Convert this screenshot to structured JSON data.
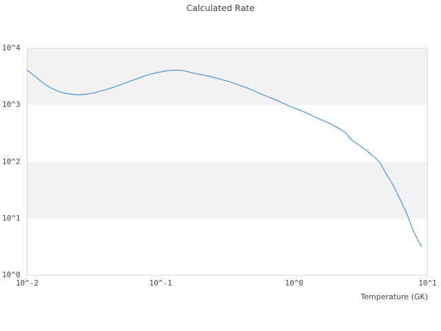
{
  "chart_data": {
    "type": "line",
    "title": "Calculated Rate",
    "xlabel": "Temperature (GK)",
    "ylabel": "",
    "x_scale": "log",
    "y_scale": "log",
    "xlim": [
      0.01,
      10
    ],
    "ylim": [
      1,
      10000
    ],
    "x_ticks": [
      {
        "label": "10^-2",
        "value": 0.01
      },
      {
        "label": "10^-1",
        "value": 0.1
      },
      {
        "label": "10^0",
        "value": 1
      },
      {
        "label": "10^1",
        "value": 10
      }
    ],
    "y_ticks": [
      {
        "label": "10^0",
        "value": 1
      },
      {
        "label": "10^1",
        "value": 10
      },
      {
        "label": "10^2",
        "value": 100
      },
      {
        "label": "10^3",
        "value": 1000
      },
      {
        "label": "10^4",
        "value": 10000
      }
    ],
    "grid": "off",
    "legend": "none",
    "decade_bands": [
      {
        "from": 1000,
        "to": 10000
      },
      {
        "from": 10,
        "to": 100
      }
    ],
    "colors": {
      "band": "#f2f2f2",
      "spine": "#d6d6d6",
      "line": "#5598de",
      "text": "#454545",
      "title_text": "#3d3d3d",
      "background": "#ffffff"
    },
    "series": [
      {
        "name": "calculated-rate",
        "points": [
          [
            0.01,
            4100
          ],
          [
            0.0113,
            3270
          ],
          [
            0.0127,
            2610
          ],
          [
            0.0143,
            2140
          ],
          [
            0.016,
            1870
          ],
          [
            0.018,
            1670
          ],
          [
            0.0204,
            1575
          ],
          [
            0.0244,
            1510
          ],
          [
            0.029,
            1575
          ],
          [
            0.033,
            1670
          ],
          [
            0.042,
            1970
          ],
          [
            0.054,
            2430
          ],
          [
            0.068,
            2960
          ],
          [
            0.084,
            3500
          ],
          [
            0.105,
            3920
          ],
          [
            0.123,
            4080
          ],
          [
            0.147,
            4030
          ],
          [
            0.176,
            3650
          ],
          [
            0.223,
            3270
          ],
          [
            0.283,
            2840
          ],
          [
            0.358,
            2400
          ],
          [
            0.455,
            1950
          ],
          [
            0.577,
            1530
          ],
          [
            0.731,
            1225
          ],
          [
            0.927,
            950
          ],
          [
            1.18,
            760
          ],
          [
            1.49,
            590
          ],
          [
            1.89,
            460
          ],
          [
            2.4,
            330
          ],
          [
            2.7,
            242
          ],
          [
            3.43,
            163
          ],
          [
            3.86,
            128
          ],
          [
            4.35,
            99
          ],
          [
            4.9,
            61
          ],
          [
            5.5,
            39
          ],
          [
            6.21,
            22
          ],
          [
            7.0,
            12
          ],
          [
            7.88,
            5.8
          ],
          [
            9.0,
            3.2
          ]
        ]
      }
    ]
  }
}
